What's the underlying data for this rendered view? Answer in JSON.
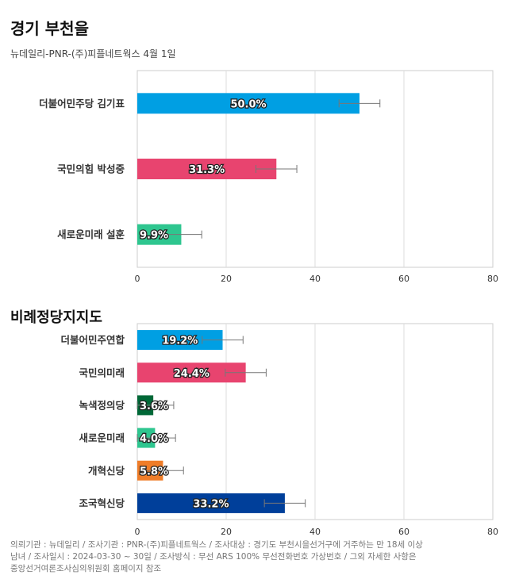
{
  "header": {
    "title": "경기 부천을",
    "subtitle": "뉴데일리-PNR-(주)피플네트웍스 4월 1일"
  },
  "chart_data": [
    {
      "type": "bar",
      "orientation": "horizontal",
      "title": "",
      "categories": [
        "더불어민주당 김기표",
        "국민의힘 박성중",
        "새로운미래 설훈"
      ],
      "values": [
        50.0,
        31.3,
        9.9
      ],
      "labels": [
        "50.0%",
        "31.3%",
        "9.9%"
      ],
      "error_margin": 4.6,
      "colors": [
        "#009fe3",
        "#e8446f",
        "#2ec68f"
      ],
      "xlim": [
        0,
        80
      ],
      "xticks": [
        0,
        20,
        40,
        60,
        80
      ],
      "grid": true
    },
    {
      "type": "bar",
      "orientation": "horizontal",
      "title": "비례정당지지도",
      "categories": [
        "더불어민주연합",
        "국민의미래",
        "녹색정의당",
        "새로운미래",
        "개혁신당",
        "조국혁신당"
      ],
      "values": [
        19.2,
        24.4,
        3.6,
        4.0,
        5.8,
        33.2
      ],
      "labels": [
        "19.2%",
        "24.4%",
        "3.6%",
        "4.0%",
        "5.8%",
        "33.2%"
      ],
      "error_margin": 4.6,
      "colors": [
        "#009fe3",
        "#e8446f",
        "#006837",
        "#2ec68f",
        "#ef7d29",
        "#003f9a"
      ],
      "xlim": [
        0,
        80
      ],
      "xticks": [
        0,
        20,
        40,
        60,
        80
      ],
      "grid": true
    }
  ],
  "footnote": {
    "line1": "의뢰기관 : 뉴데일리 / 조사기관 : PNR-(주)피플네트웍스 / 조사대상 : 경기도 부천시을선거구에 거주하는 만 18세 이상",
    "line2": "남녀 / 조사일시 : 2024-03-30 ~ 30일 / 조사방식 : 무선 ARS 100% 무선전화번호 가상번호 / 그외 자세한 사항은",
    "line3": "중앙선거여론조사심의위원회 홈페이지 참조"
  }
}
